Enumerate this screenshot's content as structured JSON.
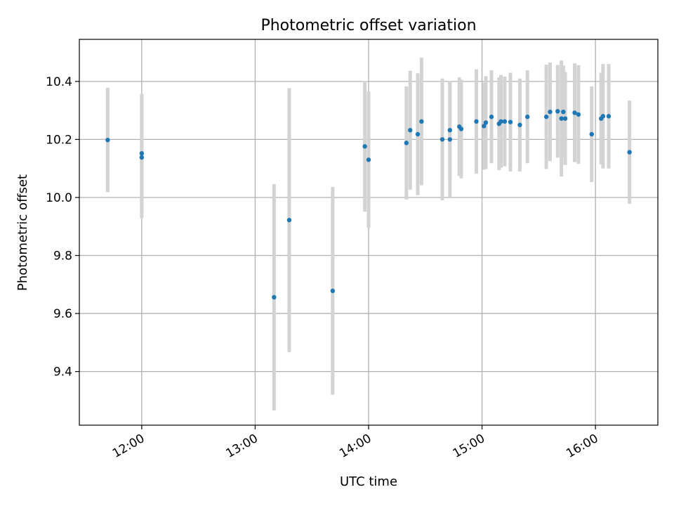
{
  "chart_data": {
    "type": "scatter",
    "title": "Photometric offset variation",
    "xlabel": "UTC time",
    "ylabel": "Photometric offset",
    "xlim": [
      "11:27",
      "16:33"
    ],
    "ylim": [
      9.215,
      10.545
    ],
    "x_ticks": [
      "12:00",
      "13:00",
      "14:00",
      "15:00",
      "16:00"
    ],
    "y_ticks": [
      9.4,
      9.6,
      9.8,
      10.0,
      10.2,
      10.4
    ],
    "y_tick_labels": [
      "9.4",
      "9.6",
      "9.8",
      "10.0",
      "10.2",
      "10.4"
    ],
    "grid": true,
    "colors": {
      "marker": "#1f77b4",
      "errorbar": "#d3d3d3",
      "grid": "#b0b0b0"
    },
    "series": [
      {
        "points": [
          {
            "x": "11:42",
            "y": 10.198,
            "err": 0.18
          },
          {
            "x": "12:00",
            "y": 10.152,
            "err": 0.205
          },
          {
            "x": "12:00",
            "y": 10.138,
            "err": 0.21
          },
          {
            "x": "13:10",
            "y": 9.656,
            "err": 0.39
          },
          {
            "x": "13:18",
            "y": 9.922,
            "err": 0.455
          },
          {
            "x": "13:41",
            "y": 9.678,
            "err": 0.358
          },
          {
            "x": "13:58",
            "y": 10.176,
            "err": 0.225
          },
          {
            "x": "14:00",
            "y": 10.13,
            "err": 0.235
          },
          {
            "x": "14:20",
            "y": 10.188,
            "err": 0.195
          },
          {
            "x": "14:22",
            "y": 10.232,
            "err": 0.205
          },
          {
            "x": "14:26",
            "y": 10.218,
            "err": 0.21
          },
          {
            "x": "14:28",
            "y": 10.262,
            "err": 0.22
          },
          {
            "x": "14:39",
            "y": 10.2,
            "err": 0.21
          },
          {
            "x": "14:43",
            "y": 10.2,
            "err": 0.2
          },
          {
            "x": "14:43",
            "y": 10.232,
            "err": 0.17
          },
          {
            "x": "14:48",
            "y": 10.244,
            "err": 0.17
          },
          {
            "x": "14:49",
            "y": 10.236,
            "err": 0.17
          },
          {
            "x": "14:57",
            "y": 10.262,
            "err": 0.18
          },
          {
            "x": "15:01",
            "y": 10.246,
            "err": 0.15
          },
          {
            "x": "15:02",
            "y": 10.258,
            "err": 0.16
          },
          {
            "x": "15:05",
            "y": 10.278,
            "err": 0.16
          },
          {
            "x": "15:09",
            "y": 10.254,
            "err": 0.16
          },
          {
            "x": "15:10",
            "y": 10.262,
            "err": 0.16
          },
          {
            "x": "15:12",
            "y": 10.262,
            "err": 0.155
          },
          {
            "x": "15:15",
            "y": 10.26,
            "err": 0.17
          },
          {
            "x": "15:20",
            "y": 10.25,
            "err": 0.16
          },
          {
            "x": "15:24",
            "y": 10.278,
            "err": 0.16
          },
          {
            "x": "15:34",
            "y": 10.278,
            "err": 0.18
          },
          {
            "x": "15:36",
            "y": 10.295,
            "err": 0.17
          },
          {
            "x": "15:40",
            "y": 10.297,
            "err": 0.16
          },
          {
            "x": "15:42",
            "y": 10.272,
            "err": 0.2
          },
          {
            "x": "15:43",
            "y": 10.295,
            "err": 0.16
          },
          {
            "x": "15:44",
            "y": 10.272,
            "err": 0.16
          },
          {
            "x": "15:49",
            "y": 10.292,
            "err": 0.17
          },
          {
            "x": "15:51",
            "y": 10.286,
            "err": 0.17
          },
          {
            "x": "15:58",
            "y": 10.218,
            "err": 0.165
          },
          {
            "x": "16:03",
            "y": 10.272,
            "err": 0.158
          },
          {
            "x": "16:04",
            "y": 10.28,
            "err": 0.18
          },
          {
            "x": "16:07",
            "y": 10.28,
            "err": 0.18
          },
          {
            "x": "16:18",
            "y": 10.156,
            "err": 0.178
          }
        ]
      }
    ]
  }
}
